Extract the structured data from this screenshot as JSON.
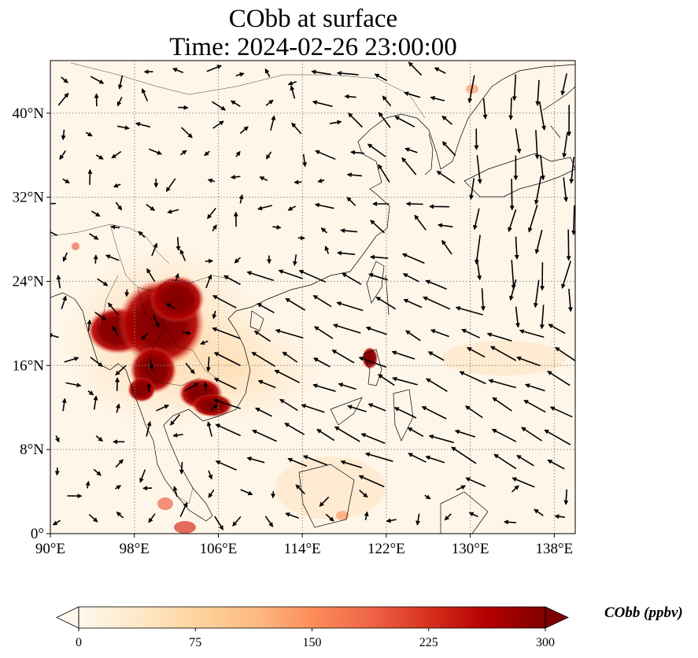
{
  "title": {
    "line1": "CObb at surface",
    "line2": "Time: 2024-02-26 23:00:00"
  },
  "map": {
    "projection": "PlateCarree",
    "lon_range": [
      90,
      140
    ],
    "lat_range": [
      0,
      45
    ],
    "grid": "dotted",
    "field": "CObb",
    "overlay": "wind-vectors",
    "x_ticks": [
      {
        "value": 90,
        "label": "90°E"
      },
      {
        "value": 98,
        "label": "98°E"
      },
      {
        "value": 106,
        "label": "106°E"
      },
      {
        "value": 114,
        "label": "114°E"
      },
      {
        "value": 122,
        "label": "122°E"
      },
      {
        "value": 130,
        "label": "130°E"
      },
      {
        "value": 138,
        "label": "138°E"
      }
    ],
    "y_ticks": [
      {
        "value": 0,
        "label": "0°"
      },
      {
        "value": 8,
        "label": "8°N"
      },
      {
        "value": 16,
        "label": "16°N"
      },
      {
        "value": 24,
        "label": "24°N"
      },
      {
        "value": 32,
        "label": "32°N"
      },
      {
        "value": 40,
        "label": "40°N"
      }
    ]
  },
  "colorbar": {
    "label": "CObb (ppbv)",
    "colormap": "OrRd",
    "extend": "both",
    "range": [
      0,
      300
    ],
    "ticks": [
      "0",
      "75",
      "150",
      "225",
      "300"
    ],
    "colors": [
      "#fff7ec",
      "#fee8c8",
      "#fdd49e",
      "#fdbb84",
      "#fc8d59",
      "#ef6548",
      "#d7301f",
      "#b30000",
      "#7f0000"
    ]
  }
}
